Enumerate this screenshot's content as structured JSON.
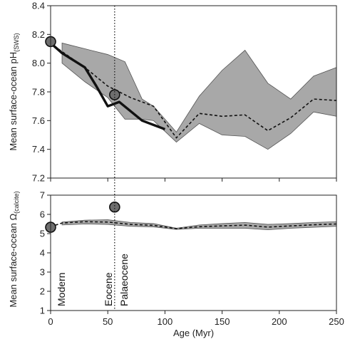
{
  "chart_data": [
    {
      "type": "line",
      "title": "",
      "xlabel": "",
      "ylabel_main": "Mean surface-ocean pH",
      "ylabel_sub": "(SWS)",
      "xlim": [
        0,
        250
      ],
      "ylim": [
        7.2,
        8.4
      ],
      "yticks": [
        7.2,
        7.4,
        7.6,
        7.8,
        8.0,
        8.2,
        8.4
      ],
      "ytick_labels": [
        "7.2",
        "7.4",
        "7.6",
        "7.8",
        "8.0",
        "8.2",
        "8.4"
      ],
      "grid": false,
      "band": {
        "x": [
          10,
          30,
          50,
          65,
          80,
          90,
          110,
          130,
          150,
          170,
          190,
          210,
          230,
          250
        ],
        "upper": [
          8.14,
          8.1,
          8.06,
          8.01,
          7.75,
          7.7,
          7.52,
          7.77,
          7.95,
          8.09,
          7.86,
          7.75,
          7.91,
          7.97
        ],
        "lower": [
          8.0,
          7.87,
          7.76,
          7.61,
          7.61,
          7.6,
          7.45,
          7.58,
          7.5,
          7.49,
          7.4,
          7.51,
          7.66,
          7.63
        ],
        "color": "#a8a8a8"
      },
      "series": [
        {
          "style": "dashed",
          "x": [
            0,
            10,
            30,
            50,
            70,
            90,
            110,
            130,
            150,
            170,
            190,
            210,
            230,
            250
          ],
          "values": [
            8.14,
            8.08,
            7.97,
            7.84,
            7.76,
            7.7,
            7.48,
            7.65,
            7.63,
            7.64,
            7.53,
            7.62,
            7.75,
            7.74
          ]
        },
        {
          "style": "solid-thick",
          "x": [
            0,
            10,
            30,
            40,
            50,
            60,
            80,
            90,
            100
          ],
          "values": [
            8.14,
            8.07,
            7.97,
            7.84,
            7.7,
            7.73,
            7.6,
            7.57,
            7.54
          ]
        }
      ],
      "points": [
        {
          "x": 0,
          "y": 8.15
        },
        {
          "x": 56,
          "y": 7.78
        }
      ],
      "point_color": "#6e6e6e"
    },
    {
      "type": "line",
      "title": "",
      "xlabel": "Age (Myr)",
      "ylabel_main": "Mean surface-ocean Ω",
      "ylabel_sub": "(calcite)",
      "xlim": [
        0,
        250
      ],
      "ylim": [
        1,
        7
      ],
      "yticks": [
        1,
        2,
        3,
        4,
        5,
        6,
        7
      ],
      "ytick_labels": [
        "1",
        "2",
        "3",
        "4",
        "5",
        "6",
        "7"
      ],
      "xticks": [
        0,
        50,
        100,
        150,
        200,
        250
      ],
      "xtick_labels": [
        "0",
        "50",
        "100",
        "150",
        "200",
        "250"
      ],
      "grid": false,
      "band": {
        "x": [
          10,
          30,
          50,
          70,
          90,
          110,
          130,
          150,
          170,
          190,
          210,
          230,
          250
        ],
        "upper": [
          5.6,
          5.7,
          5.72,
          5.58,
          5.52,
          5.28,
          5.45,
          5.52,
          5.58,
          5.48,
          5.52,
          5.58,
          5.62
        ],
        "lower": [
          5.45,
          5.5,
          5.48,
          5.38,
          5.35,
          5.22,
          5.28,
          5.28,
          5.28,
          5.2,
          5.28,
          5.33,
          5.38
        ],
        "color": "#a8a8a8"
      },
      "series": [
        {
          "style": "dashed",
          "x": [
            0,
            10,
            30,
            50,
            70,
            90,
            110,
            130,
            150,
            170,
            190,
            210,
            230,
            250
          ],
          "values": [
            5.36,
            5.55,
            5.62,
            5.6,
            5.48,
            5.43,
            5.26,
            5.36,
            5.4,
            5.44,
            5.34,
            5.4,
            5.46,
            5.5
          ]
        }
      ],
      "points": [
        {
          "x": 0,
          "y": 5.33
        },
        {
          "x": 56,
          "y": 6.38
        }
      ],
      "point_color": "#6e6e6e"
    }
  ],
  "annotations": {
    "reference_line_x": 56,
    "modern": "Modern",
    "eocene": "Eocene",
    "palaeocene": "Palaeocene"
  }
}
